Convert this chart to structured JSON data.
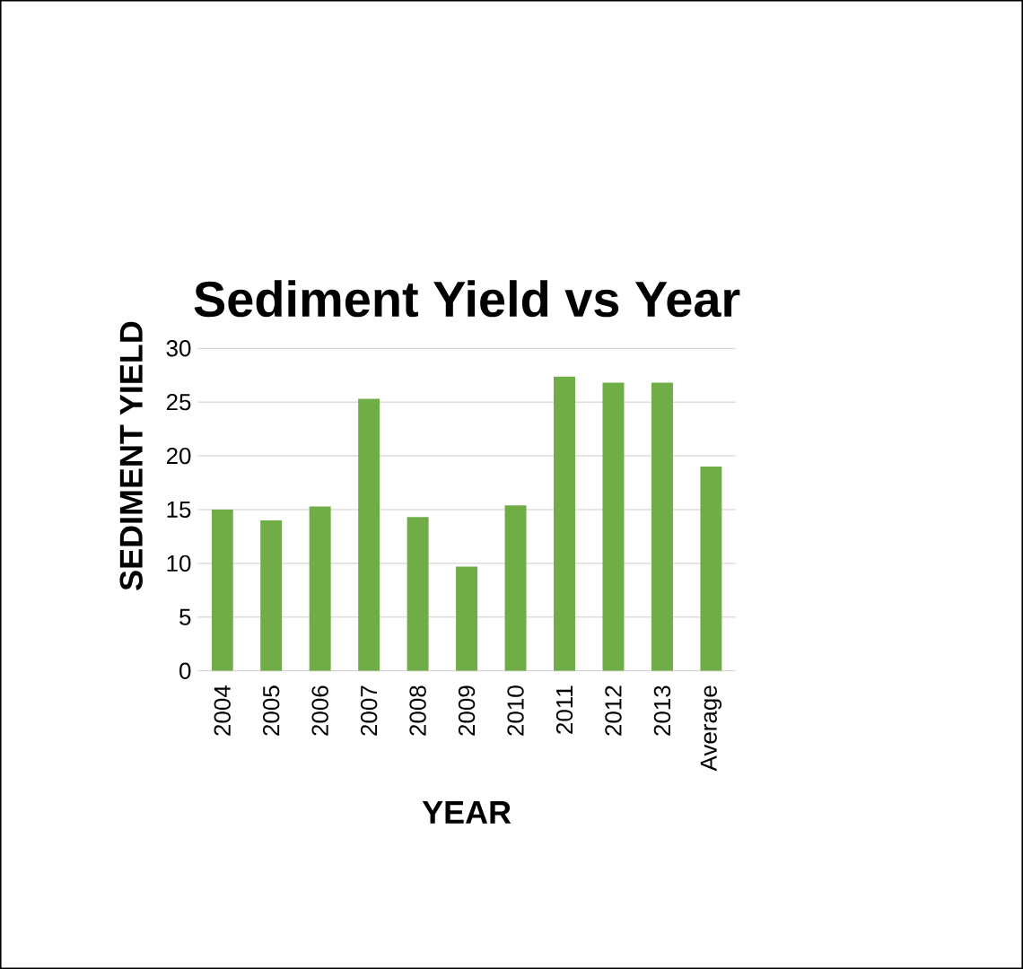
{
  "chart_data": {
    "type": "bar",
    "title": "Sediment Yield vs Year",
    "xlabel": "YEAR",
    "ylabel": "SEDIMENT    YIELD",
    "categories": [
      "2004",
      "2005",
      "2006",
      "2007",
      "2008",
      "2009",
      "2010",
      "2011",
      "2012",
      "2013",
      "Average"
    ],
    "values": [
      15.0,
      14.0,
      15.3,
      25.3,
      14.3,
      9.7,
      15.4,
      27.4,
      26.8,
      26.8,
      19.0
    ],
    "color": "#70ad47",
    "ylim": [
      0,
      30
    ],
    "yticks": [
      0,
      5,
      10,
      15,
      20,
      25,
      30
    ],
    "grid": "y"
  }
}
